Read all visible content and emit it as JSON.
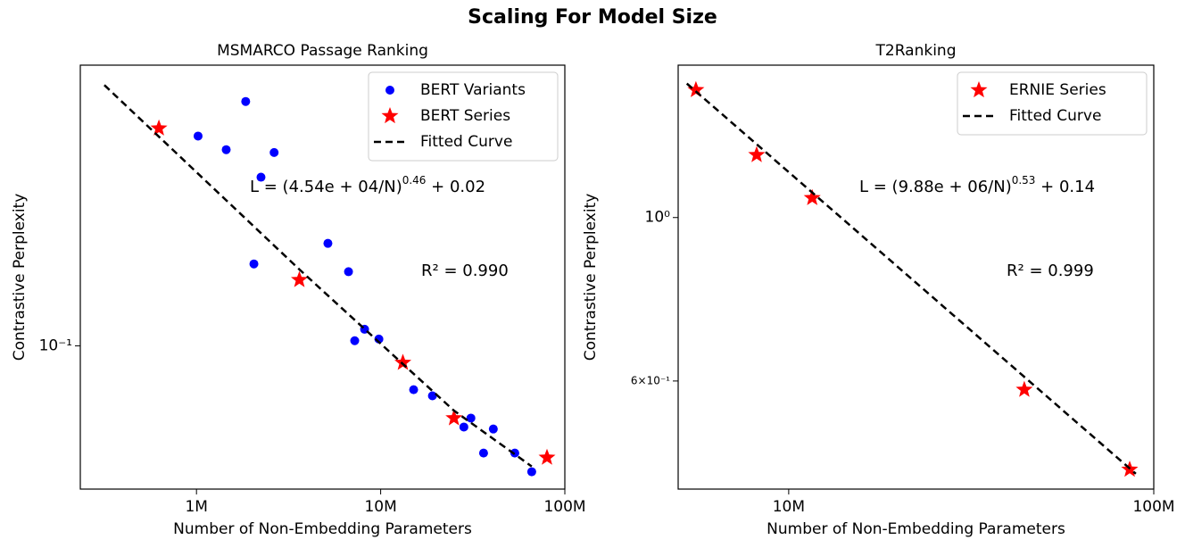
{
  "title": "Scaling For Model Size",
  "chart_data": [
    {
      "type": "scatter",
      "title": "MSMARCO Passage Ranking",
      "x_label": "Number of Non-Embedding Parameters",
      "y_label": "Contrastive Perplexity",
      "xscale": "log",
      "yscale": "log",
      "xlim": [
        234000,
        100000000
      ],
      "ylim": [
        0.044,
        0.5
      ],
      "xticks": [
        {
          "value": 1000000,
          "label": "1M"
        },
        {
          "value": 10000000,
          "label": "10M"
        },
        {
          "value": 100000000,
          "label": "100M"
        }
      ],
      "yticks": [
        {
          "value": 0.1,
          "label": "10⁻¹"
        }
      ],
      "legend": "upper right",
      "series": [
        {
          "name": "BERT Variants",
          "color": "#0000ff",
          "marker": "o",
          "x": [
            1020000,
            1450000,
            1850000,
            2640000,
            2240000,
            2050000,
            5170000,
            6690000,
            8180000,
            7230000,
            9780000,
            15100000,
            19100000,
            30900000,
            28300000,
            40900000,
            36200000,
            53500000,
            66100000
          ],
          "values": [
            0.333,
            0.308,
            0.406,
            0.303,
            0.263,
            0.16,
            0.18,
            0.153,
            0.11,
            0.103,
            0.104,
            0.0778,
            0.0751,
            0.0661,
            0.0628,
            0.0621,
            0.0541,
            0.0541,
            0.0486
          ]
        },
        {
          "name": "BERT Series",
          "color": "#ff0000",
          "marker": "*",
          "x": [
            625000,
            3620000,
            13200000,
            25000000,
            80000000
          ],
          "values": [
            0.348,
            0.146,
            0.0908,
            0.0661,
            0.0527
          ]
        },
        {
          "name": "Fitted Curve",
          "color": "#000000",
          "marker": "--",
          "x": [
            316000,
            3620000,
            25000000,
            66100000
          ],
          "values": [
            0.446,
            0.155,
            0.069,
            0.0501
          ]
        }
      ],
      "annotations": [
        {
          "text": "L = (4.54e + 04/N)",
          "sup": "0.46",
          "tail": " + 0.02"
        },
        {
          "text": "R² = 0.990"
        }
      ]
    },
    {
      "type": "scatter",
      "title": "T2Ranking",
      "x_label": "Number of Non-Embedding Parameters",
      "y_label": "Contrastive Perplexity",
      "xscale": "log",
      "yscale": "log",
      "xlim": [
        4980000,
        100000000
      ],
      "ylim": [
        0.428,
        1.61
      ],
      "xticks": [
        {
          "value": 10000000,
          "label": "10M"
        },
        {
          "value": 100000000,
          "label": "100M"
        }
      ],
      "yticks": [
        {
          "value": 1,
          "label": "10⁰"
        },
        {
          "value": 0.6,
          "label": "6×10⁻¹"
        }
      ],
      "legend": "upper right",
      "series": [
        {
          "name": "ERNIE Series",
          "color": "#ff0000",
          "marker": "*",
          "x": [
            5570000,
            8170000,
            11600000,
            44200000,
            85900000
          ],
          "values": [
            1.49,
            1.216,
            1.063,
            0.584,
            0.455
          ]
        },
        {
          "name": "Fitted Curve",
          "color": "#000000",
          "marker": "--",
          "x": [
            5260000,
            89300000
          ],
          "values": [
            1.52,
            0.449
          ]
        }
      ],
      "annotations": [
        {
          "text": "L = (9.88e + 06/N)",
          "sup": "0.53",
          "tail": " + 0.14"
        },
        {
          "text": "R² = 0.999"
        }
      ]
    }
  ]
}
